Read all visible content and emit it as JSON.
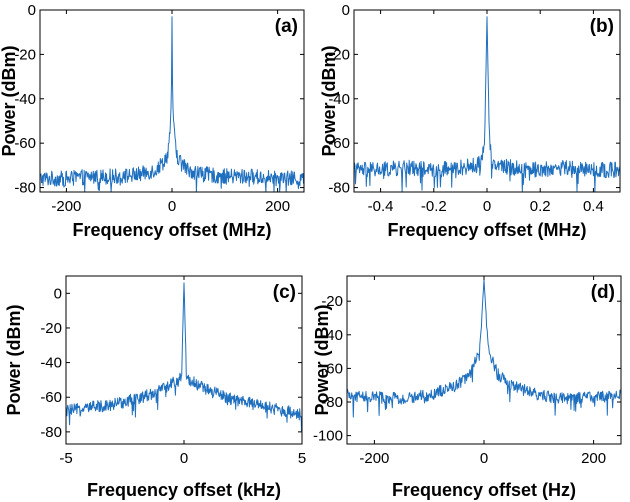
{
  "chart_data": [
    {
      "type": "line",
      "panel_label": "(a)",
      "xlabel": "Frequency offset (MHz)",
      "ylabel": "Power (dBm)",
      "xlim": [
        -250,
        250
      ],
      "ylim": [
        -82,
        0
      ],
      "xticks": [
        -200,
        0,
        200
      ],
      "yticks": [
        -80,
        -60,
        -40,
        -20,
        0
      ],
      "color": "#1f6fbf",
      "series": [
        {
          "x": [
            -250,
            -200,
            -150,
            -100,
            -60,
            -30,
            -15,
            -8,
            -4,
            -2,
            -1,
            0,
            1,
            2,
            4,
            8,
            15,
            30,
            60,
            100,
            150,
            200,
            250
          ],
          "y": [
            -76,
            -76,
            -75,
            -75,
            -74,
            -72,
            -68,
            -65,
            -55,
            -45,
            -34,
            -3,
            -34,
            -45,
            -55,
            -65,
            -68,
            -72,
            -74,
            -75,
            -75,
            -76,
            -76
          ]
        }
      ]
    },
    {
      "type": "line",
      "panel_label": "(b)",
      "xlabel": "Frequency offset (MHz)",
      "ylabel": "Power (dBm)",
      "xlim": [
        -0.5,
        0.5
      ],
      "ylim": [
        -82,
        0
      ],
      "xticks": [
        -0.4,
        -0.2,
        0,
        0.2,
        0.4
      ],
      "yticks": [
        -80,
        -60,
        -40,
        -20,
        0
      ],
      "color": "#1f6fbf",
      "series": [
        {
          "x": [
            -0.5,
            -0.4,
            -0.3,
            -0.2,
            -0.1,
            -0.04,
            -0.02,
            -0.01,
            -0.004,
            0,
            0.004,
            0.01,
            0.02,
            0.04,
            0.1,
            0.2,
            0.3,
            0.4,
            0.5
          ],
          "y": [
            -72,
            -72,
            -71,
            -72,
            -71,
            -70,
            -68,
            -60,
            -28,
            -3,
            -28,
            -60,
            -68,
            -70,
            -71,
            -72,
            -71,
            -72,
            -72
          ]
        }
      ]
    },
    {
      "type": "line",
      "panel_label": "(c)",
      "xlabel": "Frequency offset (kHz)",
      "ylabel": "Power (dBm)",
      "xlim": [
        -5,
        5
      ],
      "ylim": [
        -87,
        10
      ],
      "xticks": [
        -5,
        0,
        5
      ],
      "yticks": [
        -80,
        -60,
        -40,
        -20,
        0
      ],
      "color": "#1f6fbf",
      "series": [
        {
          "x": [
            -5,
            -4,
            -3,
            -2,
            -1,
            -0.5,
            -0.2,
            -0.1,
            -0.05,
            0,
            0.05,
            0.1,
            0.2,
            0.5,
            1,
            2,
            3,
            4,
            5
          ],
          "y": [
            -68,
            -66,
            -64,
            -61,
            -56,
            -52,
            -50,
            -48,
            -20,
            6,
            -20,
            -48,
            -50,
            -52,
            -56,
            -61,
            -64,
            -67,
            -70
          ]
        }
      ]
    },
    {
      "type": "line",
      "panel_label": "(d)",
      "xlabel": "Frequency offset (Hz)",
      "ylabel": "Power (dBm)",
      "xlim": [
        -250,
        250
      ],
      "ylim": [
        -105,
        -5
      ],
      "xticks": [
        -200,
        0,
        200
      ],
      "yticks": [
        -100,
        -80,
        -60,
        -40,
        -20
      ],
      "color": "#1f6fbf",
      "series": [
        {
          "x": [
            -250,
            -200,
            -150,
            -100,
            -50,
            -30,
            -20,
            -10,
            -5,
            0,
            5,
            10,
            20,
            30,
            50,
            100,
            150,
            200,
            250
          ],
          "y": [
            -76,
            -77,
            -78,
            -76,
            -70,
            -65,
            -60,
            -50,
            -35,
            -7,
            -35,
            -50,
            -60,
            -65,
            -70,
            -76,
            -78,
            -77,
            -76
          ]
        }
      ]
    }
  ]
}
